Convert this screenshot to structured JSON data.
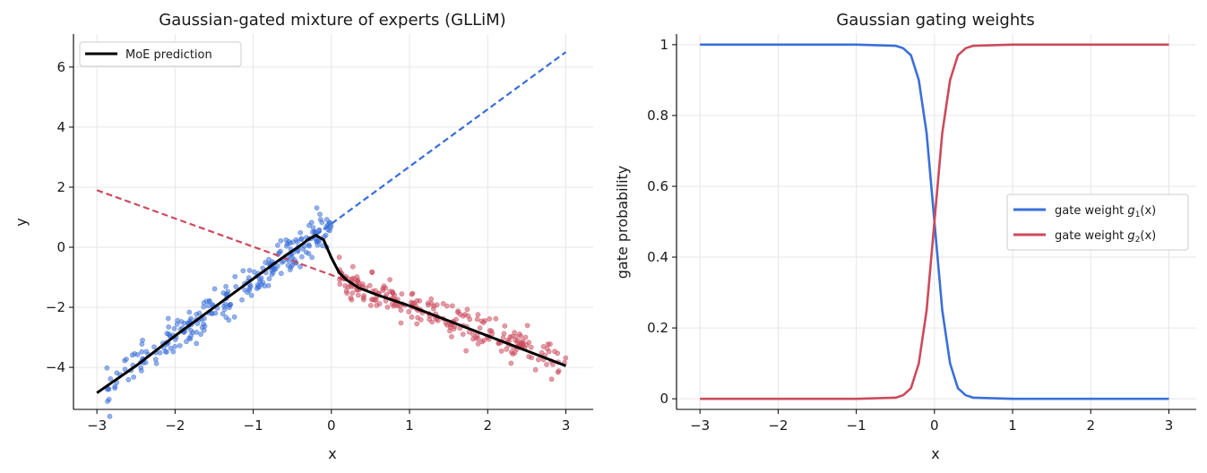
{
  "chart_data": [
    {
      "type": "scatter",
      "title": "Gaussian-gated mixture of experts (GLLiM)",
      "xlabel": "x",
      "ylabel": "y",
      "xlim": [
        -3.3,
        3.35
      ],
      "ylim": [
        -5.4,
        7.1
      ],
      "xticks": [
        -3,
        -2,
        -1,
        0,
        1,
        2,
        3
      ],
      "yticks": [
        -4,
        -2,
        0,
        2,
        4,
        6
      ],
      "grid": true,
      "legend": {
        "position": "top-left",
        "entries": [
          "MoE prediction"
        ]
      },
      "colors": {
        "expert1": "#3a6fd8",
        "expert2": "#cc4a5c",
        "moe": "#000000"
      },
      "expert_lines": [
        {
          "color": "#cc4a5c",
          "style": "dashed",
          "x": [
            -3,
            0.4
          ],
          "y": [
            1.9,
            -1.3
          ]
        },
        {
          "color": "#3a6fd8",
          "style": "dashed",
          "x": [
            -0.2,
            3
          ],
          "y": [
            0.4,
            6.5
          ]
        }
      ],
      "moe_prediction": {
        "name": "MoE prediction",
        "x": [
          -3.0,
          -2.5,
          -2.0,
          -1.5,
          -1.0,
          -0.6,
          -0.4,
          -0.3,
          -0.2,
          -0.1,
          0.0,
          0.1,
          0.2,
          0.35,
          0.6,
          1.0,
          1.5,
          2.0,
          2.5,
          3.0
        ],
        "y": [
          -4.85,
          -3.95,
          -2.95,
          -2.0,
          -1.05,
          -0.3,
          0.05,
          0.25,
          0.4,
          0.25,
          -0.35,
          -0.85,
          -1.1,
          -1.35,
          -1.6,
          -1.95,
          -2.45,
          -2.95,
          -3.45,
          -3.95
        ]
      },
      "scatter_series": [
        {
          "color": "#3a6fd8",
          "x_range": [
            -2.9,
            0.0
          ],
          "slope": 1.9,
          "intercept": 0.8,
          "noise": 0.3,
          "n": 260
        },
        {
          "color": "#cc4a5c",
          "x_range": [
            0.1,
            3.0
          ],
          "slope": -0.95,
          "intercept": -1.0,
          "noise": 0.28,
          "n": 240
        }
      ]
    },
    {
      "type": "line",
      "title": "Gaussian gating weights",
      "xlabel": "x",
      "ylabel": "gate probability",
      "xlim": [
        -3.3,
        3.35
      ],
      "ylim": [
        -0.03,
        1.03
      ],
      "xticks": [
        -3,
        -2,
        -1,
        0,
        1,
        2,
        3
      ],
      "yticks": [
        0.0,
        0.2,
        0.4,
        0.6,
        0.8,
        1.0
      ],
      "grid": true,
      "legend": {
        "position": "center-right"
      },
      "x": [
        -3.0,
        -1.0,
        -0.5,
        -0.4,
        -0.3,
        -0.2,
        -0.1,
        0.0,
        0.1,
        0.2,
        0.3,
        0.4,
        0.5,
        1.0,
        3.0
      ],
      "series": [
        {
          "name": "gate weight g1(x)",
          "label_base": "gate weight ",
          "label_var": "g",
          "label_sub": "1",
          "label_arg": "(x)",
          "color": "#3a6fd8",
          "values": [
            1.0,
            1.0,
            0.997,
            0.99,
            0.97,
            0.9,
            0.75,
            0.5,
            0.25,
            0.1,
            0.03,
            0.01,
            0.003,
            0.0,
            0.0
          ]
        },
        {
          "name": "gate weight g2(x)",
          "label_base": "gate weight ",
          "label_var": "g",
          "label_sub": "2",
          "label_arg": "(x)",
          "color": "#cc4a5c",
          "values": [
            0.0,
            0.0,
            0.003,
            0.01,
            0.03,
            0.1,
            0.25,
            0.5,
            0.75,
            0.9,
            0.97,
            0.99,
            0.997,
            1.0,
            1.0
          ]
        }
      ]
    }
  ]
}
